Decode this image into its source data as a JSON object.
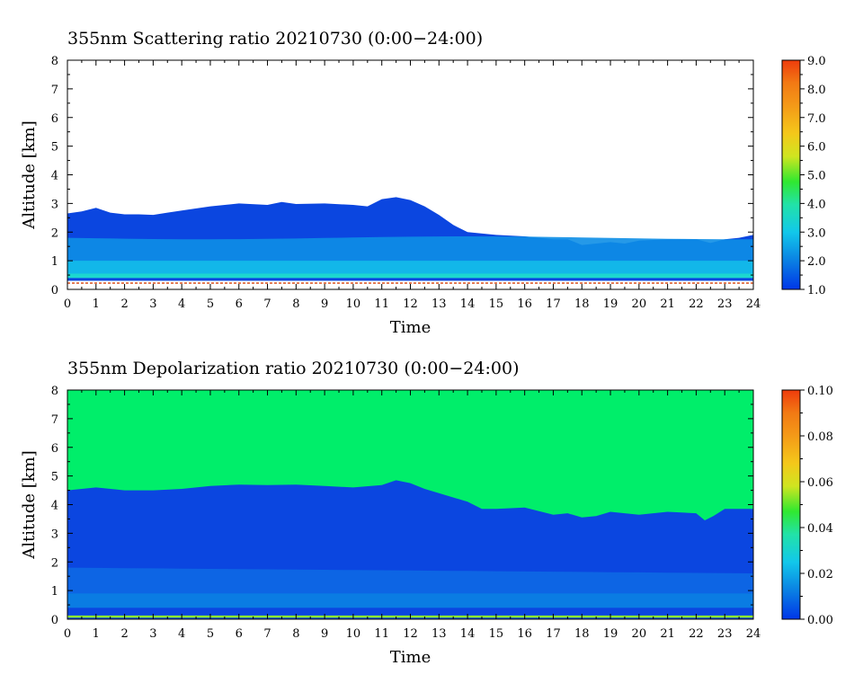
{
  "chart_data": [
    {
      "type": "heatmap",
      "title": "355nm Scattering ratio  20210730 (0:00−24:00)",
      "xlabel": "Time",
      "ylabel": "Altitude [km]",
      "xlim": [
        0,
        24
      ],
      "ylim": [
        0,
        8
      ],
      "x_ticks": [
        "0",
        "1",
        "2",
        "3",
        "4",
        "5",
        "6",
        "7",
        "8",
        "9",
        "10",
        "11",
        "12",
        "13",
        "14",
        "15",
        "16",
        "17",
        "18",
        "19",
        "20",
        "21",
        "22",
        "23",
        "24"
      ],
      "y_ticks": [
        "0",
        "1",
        "2",
        "3",
        "4",
        "5",
        "6",
        "7",
        "8"
      ],
      "colorbar": {
        "range": [
          1.0,
          9.0
        ],
        "ticks": [
          "1.0",
          "2.0",
          "3.0",
          "4.0",
          "5.0",
          "6.0",
          "7.0",
          "8.0",
          "9.0"
        ]
      },
      "layer_top_km": {
        "time": [
          0,
          0.5,
          1,
          1.5,
          2,
          2.5,
          3,
          3.5,
          4,
          5,
          6,
          7,
          7.5,
          8,
          9,
          10,
          10.5,
          11,
          11.5,
          12,
          12.5,
          13,
          13.5,
          14,
          15,
          16,
          17,
          17.5,
          18,
          19,
          19.5,
          20,
          21,
          22,
          22.5,
          23,
          23.5,
          24
        ],
        "altitude": [
          2.65,
          2.72,
          2.85,
          2.68,
          2.62,
          2.62,
          2.6,
          2.68,
          2.75,
          2.9,
          3.0,
          2.95,
          3.05,
          2.98,
          3.0,
          2.95,
          2.9,
          3.15,
          3.22,
          3.12,
          2.9,
          2.6,
          2.25,
          2.0,
          1.9,
          1.85,
          1.75,
          1.75,
          1.55,
          1.65,
          1.6,
          1.7,
          1.75,
          1.75,
          1.62,
          1.75,
          1.8,
          1.9
        ]
      },
      "colors": {
        "background": "#ffffff",
        "layer": "#0b46e0",
        "mid": "#0d8ee6",
        "low": "#14c0ea",
        "surface": "#d9501f"
      }
    },
    {
      "type": "heatmap",
      "title": "355nm Depolarization ratio  20210730 (0:00−24:00)",
      "xlabel": "Time",
      "ylabel": "Altitude [km]",
      "xlim": [
        0,
        24
      ],
      "ylim": [
        0,
        8
      ],
      "x_ticks": [
        "0",
        "1",
        "2",
        "3",
        "4",
        "5",
        "6",
        "7",
        "8",
        "9",
        "10",
        "11",
        "12",
        "13",
        "14",
        "15",
        "16",
        "17",
        "18",
        "19",
        "20",
        "21",
        "22",
        "23",
        "24"
      ],
      "y_ticks": [
        "0",
        "1",
        "2",
        "3",
        "4",
        "5",
        "6",
        "7",
        "8"
      ],
      "colorbar": {
        "range": [
          0.0,
          0.1
        ],
        "ticks": [
          "0.00",
          "0.02",
          "0.04",
          "0.06",
          "0.08",
          "0.10"
        ]
      },
      "layer_top_km": {
        "time": [
          0,
          1,
          2,
          3,
          4,
          5,
          6,
          7,
          8,
          9,
          10,
          11,
          11.5,
          12,
          12.5,
          13,
          14,
          14.5,
          15,
          16,
          17,
          17.5,
          18,
          18.5,
          19,
          20,
          21,
          22,
          22.3,
          22.6,
          23,
          24
        ],
        "altitude": [
          4.5,
          4.6,
          4.5,
          4.5,
          4.55,
          4.65,
          4.7,
          4.68,
          4.7,
          4.65,
          4.6,
          4.68,
          4.85,
          4.75,
          4.55,
          4.4,
          4.1,
          3.85,
          3.85,
          3.9,
          3.65,
          3.7,
          3.55,
          3.6,
          3.75,
          3.65,
          3.75,
          3.7,
          3.45,
          3.6,
          3.85,
          3.85
        ]
      },
      "colors": {
        "background": "#00ee6a",
        "layer": "#0b46e0",
        "mid": "#0d68e4",
        "low": "#0a86e3",
        "surface": "#8ee830"
      }
    }
  ]
}
